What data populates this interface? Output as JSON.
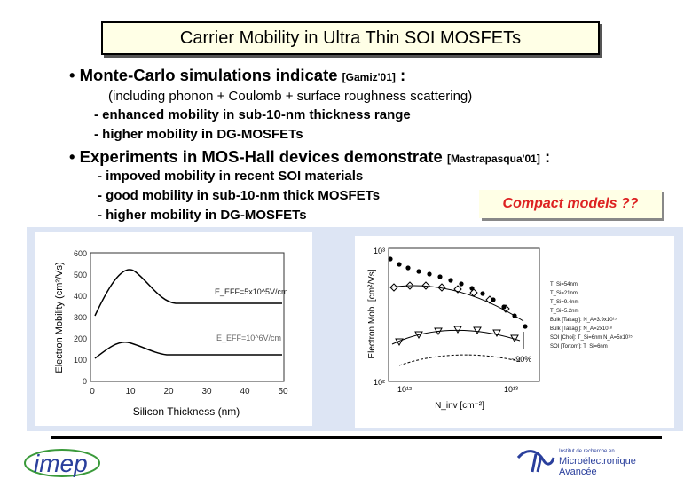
{
  "title": "Carrier Mobility in Ultra Thin SOI MOSFETs",
  "bullet1": {
    "text": "• Monte-Carlo simulations indicate ",
    "ref": "[Gamiz'01]",
    "colon": " :",
    "paren": "(including phonon + Coulomb + surface roughness scattering)",
    "items": [
      "- enhanced mobility in sub-10-nm thickness range",
      "- higher mobility in DG-MOSFETs"
    ]
  },
  "bullet2": {
    "text": "• Experiments in MOS-Hall devices demonstrate ",
    "ref": "[Mastrapasqua'01]",
    "colon": " :",
    "items": [
      "- impoved mobility in recent SOI materials",
      "- good mobility in sub-10-nm thick MOSFETs",
      "- higher mobility in DG-MOSFETs"
    ]
  },
  "compact_models": "Compact models ??",
  "left_plot": {
    "ylabel": "Electron Mobility (cm²/Vs)",
    "xlabel": "Silicon Thickness (nm)",
    "yticks": [
      "600",
      "500",
      "400",
      "300",
      "200",
      "100",
      "0"
    ],
    "xticks": [
      "0",
      "10",
      "20",
      "30",
      "40",
      "50"
    ],
    "label_high": "E_EFF=5x10^5V/cm",
    "label_low": "E_EFF=10^6V/cm"
  },
  "right_plot": {
    "ylabel": "Electron Mob. [cm²/Vs]",
    "xlabel": "N_inv [cm⁻²]",
    "xticks": [
      "10¹²",
      "10¹³"
    ],
    "yticks": [
      "10³",
      "10²"
    ],
    "annotation": "~90%",
    "legend": [
      "T_Si=54nm",
      "T_Si=21nm",
      "T_Si=9.4nm",
      "T_Si=5.2nm",
      "Bulk [Takagi]: N_A=3.9x10¹⁵",
      "Bulk [Takagi]: N_A=2x10¹⁸",
      "SOI [Choi]: T_Si=6nm N_A=5x10¹⁵",
      "SOI [Tortorn]: T_Si=6nm"
    ]
  },
  "logos": {
    "left": "imep",
    "right_small": "Institut de recherche en",
    "right_big1": "Microélectronique",
    "right_big2": "Avancée"
  },
  "colors": {
    "title_bg": "#ffffe6",
    "figure_bg": "#dde5f4",
    "compact_text": "#dd2222",
    "imep_blue": "#2a3f9c",
    "imep_green": "#3a9a3a"
  }
}
